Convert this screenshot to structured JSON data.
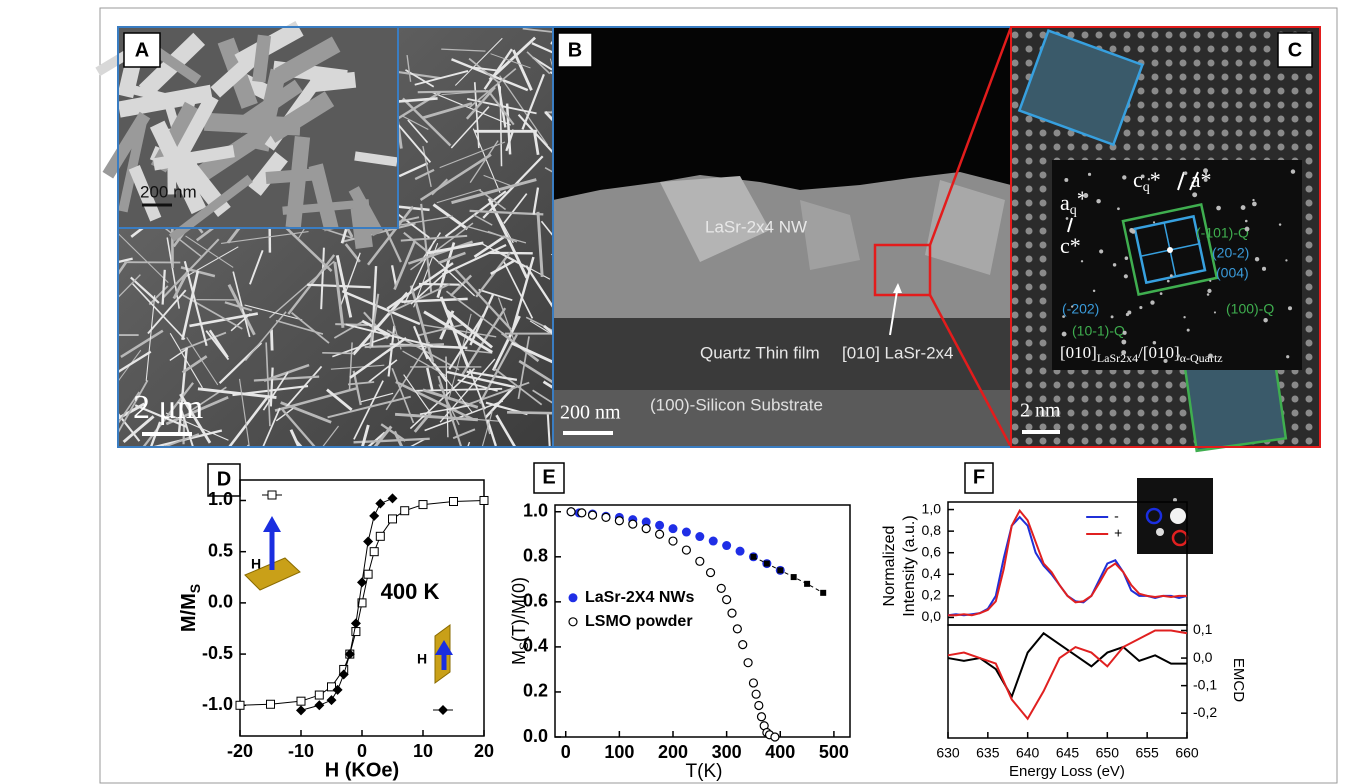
{
  "panels": {
    "A": {
      "label": "A",
      "inset_scale": "200 nm",
      "scale": "2 μm"
    },
    "B": {
      "label": "B",
      "nanowire": "LaSr-2x4 NW",
      "film": "Quartz Thin film",
      "direction": "[010] LaSr-2x4",
      "substrate": "(100)-Silicon Substrate",
      "scale": "200 nm"
    },
    "C": {
      "label": "C",
      "top_axes": [
        "c",
        "q",
        "*",
        "a*"
      ],
      "side_axes": [
        "a",
        "q",
        "*",
        "c*"
      ],
      "planes": [
        {
          "text": "(-101)-Q",
          "color": "#3fae4f"
        },
        {
          "text": "(20-2)",
          "color": "#3a9ad9"
        },
        {
          "text": "(004)",
          "color": "#3a9ad9"
        },
        {
          "text": "(-202)",
          "color": "#3a9ad9"
        },
        {
          "text": "(10-1)-Q",
          "color": "#3fae4f"
        },
        {
          "text": "(100)-Q",
          "color": "#3fae4f"
        }
      ],
      "zone": [
        "[010]",
        "LaSr2x4",
        "/[010]",
        "α-Quartz"
      ],
      "scale": "2 nm"
    }
  },
  "chart_data": [
    {
      "type": "line",
      "panel_label": "D",
      "xlabel": "H (KOe)",
      "ylabel": [
        "M/M",
        "S"
      ],
      "annotations": [
        "400 K",
        "H",
        "H"
      ],
      "xlim": [
        -20,
        20
      ],
      "xticks": [
        -20,
        -10,
        0,
        10,
        20
      ],
      "ylim": [
        -1.3,
        1.2
      ],
      "yticks": [
        {
          "value": -1,
          "label": "-1.0"
        },
        {
          "value": -0.5,
          "label": "-0.5"
        },
        {
          "value": 0,
          "label": "0.0"
        },
        {
          "value": 0.5,
          "label": "0.5"
        },
        {
          "value": 1,
          "label": "1.0"
        }
      ],
      "series": [
        {
          "color": "#000000",
          "marker": "square-open",
          "line": true,
          "x": [
            -20,
            -15,
            -10,
            -7,
            -5,
            -3,
            -2,
            -1,
            0,
            1,
            2,
            3,
            5,
            7,
            10,
            15,
            20
          ],
          "values": [
            -1.0,
            -0.99,
            -0.96,
            -0.9,
            -0.82,
            -0.65,
            -0.5,
            -0.28,
            0.0,
            0.28,
            0.5,
            0.65,
            0.82,
            0.9,
            0.96,
            0.99,
            1.0
          ]
        },
        {
          "color": "#000000",
          "marker": "diamond",
          "line": true,
          "x": [
            -10,
            -7,
            -5,
            -4,
            -3,
            -2,
            -1,
            0,
            1,
            2,
            3,
            5
          ],
          "values": [
            -1.05,
            -1.0,
            -0.95,
            -0.85,
            -0.7,
            -0.5,
            -0.2,
            0.2,
            0.6,
            0.85,
            0.97,
            1.02
          ]
        }
      ]
    },
    {
      "type": "scatter",
      "panel_label": "E",
      "xlabel": "T(K)",
      "ylabel": [
        "M",
        "S",
        "(T)/M(0)"
      ],
      "legend": "center-left",
      "xlim": [
        -20,
        530
      ],
      "xticks": [
        0,
        100,
        200,
        300,
        400,
        500
      ],
      "ylim": [
        0,
        1.03
      ],
      "yticks": [
        {
          "value": 0,
          "label": "0.0"
        },
        {
          "value": 0.2,
          "label": "0.2"
        },
        {
          "value": 0.4,
          "label": "0.4"
        },
        {
          "value": 0.6,
          "label": "0.6"
        },
        {
          "value": 0.8,
          "label": "0.8"
        },
        {
          "value": 1,
          "label": "1.0"
        }
      ],
      "series": [
        {
          "name": "LaSr-2X4 NWs",
          "color": "#1f2ee6",
          "marker": "circle-filled",
          "x": [
            10,
            25,
            50,
            75,
            100,
            125,
            150,
            175,
            200,
            225,
            250,
            275,
            300,
            325,
            350,
            375,
            400
          ],
          "values": [
            1.0,
            0.995,
            0.99,
            0.98,
            0.975,
            0.965,
            0.955,
            0.94,
            0.925,
            0.91,
            0.89,
            0.87,
            0.85,
            0.825,
            0.8,
            0.77,
            0.74
          ]
        },
        {
          "color": "#000000",
          "marker": "square",
          "line": true,
          "dash": true,
          "x": [
            350,
            375,
            400,
            425,
            450,
            480
          ],
          "values": [
            0.8,
            0.77,
            0.74,
            0.71,
            0.68,
            0.64
          ]
        },
        {
          "name": "LSMO powder",
          "color": "#000000",
          "marker": "circle-open",
          "x": [
            10,
            30,
            50,
            75,
            100,
            125,
            150,
            175,
            200,
            225,
            250,
            270,
            290,
            300,
            310,
            320,
            330,
            340,
            350,
            355,
            360,
            365,
            370,
            375,
            380,
            390
          ],
          "values": [
            1.0,
            0.995,
            0.985,
            0.975,
            0.96,
            0.945,
            0.925,
            0.9,
            0.87,
            0.83,
            0.78,
            0.73,
            0.66,
            0.61,
            0.55,
            0.48,
            0.41,
            0.33,
            0.24,
            0.19,
            0.14,
            0.09,
            0.05,
            0.02,
            0.01,
            0.0
          ]
        }
      ]
    },
    {
      "type": "line",
      "panel_label": "F",
      "ylabel": [
        "Normalized",
        "Intensity (a.u.)"
      ],
      "legend": "upper-center",
      "xlim": [
        630,
        660
      ],
      "ylim": [
        -0.07,
        1.07
      ],
      "yticks": [
        {
          "value": 0,
          "label": "0,0"
        },
        {
          "value": 0.2,
          "label": "0,2"
        },
        {
          "value": 0.4,
          "label": "0,4"
        },
        {
          "value": 0.6,
          "label": "0,6"
        },
        {
          "value": 0.8,
          "label": "0,8"
        },
        {
          "value": 1,
          "label": "1,0"
        }
      ],
      "x": [
        630,
        631,
        632,
        633,
        634,
        635,
        636,
        637,
        638,
        639,
        640,
        641,
        642,
        643,
        644,
        645,
        646,
        647,
        648,
        649,
        650,
        651,
        652,
        653,
        654,
        655,
        656,
        657,
        658,
        659,
        660
      ],
      "series": [
        {
          "name": "-",
          "color": "#2030d8",
          "line": true,
          "values": [
            0.02,
            0.03,
            0.02,
            0.03,
            0.04,
            0.08,
            0.2,
            0.55,
            0.85,
            0.93,
            0.85,
            0.6,
            0.48,
            0.4,
            0.3,
            0.2,
            0.15,
            0.14,
            0.2,
            0.35,
            0.5,
            0.53,
            0.42,
            0.25,
            0.2,
            0.2,
            0.18,
            0.2,
            0.2,
            0.18,
            0.2
          ]
        },
        {
          "name": "+",
          "color": "#e02020",
          "line": true,
          "values": [
            0.02,
            0.02,
            0.03,
            0.02,
            0.04,
            0.07,
            0.15,
            0.45,
            0.85,
            0.99,
            0.9,
            0.7,
            0.5,
            0.42,
            0.3,
            0.2,
            0.14,
            0.15,
            0.2,
            0.32,
            0.45,
            0.5,
            0.42,
            0.3,
            0.22,
            0.2,
            0.19,
            0.2,
            0.19,
            0.2,
            0.2
          ]
        }
      ]
    },
    {
      "type": "line",
      "xlabel": "Energy Loss (eV)",
      "ylabel": "EMCD",
      "yaxis": "right",
      "xlim": [
        630,
        660
      ],
      "xticks": [
        630,
        635,
        640,
        645,
        650,
        655,
        660
      ],
      "ylim": [
        -0.29,
        0.12
      ],
      "yticks": [
        {
          "value": 0.1,
          "label": "0,1"
        },
        {
          "value": 0,
          "label": "0,0"
        },
        {
          "value": -0.1,
          "label": "-0,1"
        },
        {
          "value": -0.2,
          "label": "-0,2"
        }
      ],
      "x": [
        630,
        632,
        634,
        636,
        638,
        640,
        642,
        644,
        646,
        648,
        650,
        652,
        654,
        656,
        658,
        660
      ],
      "series": [
        {
          "color": "#000000",
          "line": true,
          "values": [
            0.0,
            -0.01,
            0.0,
            -0.04,
            -0.14,
            0.02,
            0.09,
            0.05,
            0.01,
            -0.03,
            0.02,
            0.04,
            -0.01,
            0.01,
            -0.02,
            -0.02
          ]
        },
        {
          "color": "#e02020",
          "line": true,
          "values": [
            0.01,
            0.02,
            0.0,
            -0.02,
            -0.15,
            -0.22,
            -0.12,
            0.0,
            0.04,
            0.02,
            -0.03,
            0.04,
            0.07,
            0.1,
            0.1,
            0.09
          ]
        }
      ]
    }
  ]
}
